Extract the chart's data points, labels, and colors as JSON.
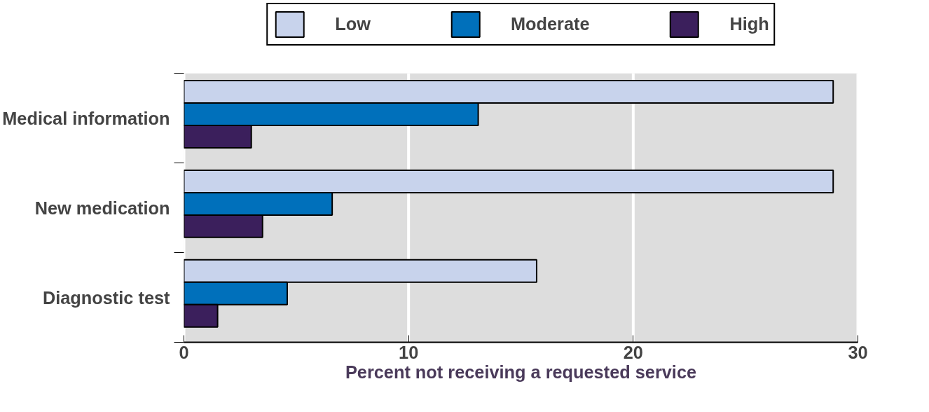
{
  "chart_data": {
    "type": "bar",
    "orientation": "horizontal",
    "categories": [
      "Medical information",
      "New medication",
      "Diagnostic test"
    ],
    "series": [
      {
        "name": "Low",
        "color": "#c8d3ec",
        "values": [
          28.9,
          28.9,
          15.7
        ]
      },
      {
        "name": "Moderate",
        "color": "#0070bb",
        "values": [
          13.1,
          6.6,
          4.6
        ]
      },
      {
        "name": "High",
        "color": "#3b1f5c",
        "values": [
          3.0,
          3.5,
          1.5
        ]
      }
    ],
    "xlabel": "Percent not receiving a requested service",
    "xlim": [
      0,
      30
    ],
    "xticks": [
      0,
      10,
      20,
      30
    ],
    "grid": "x",
    "legend": "top"
  }
}
